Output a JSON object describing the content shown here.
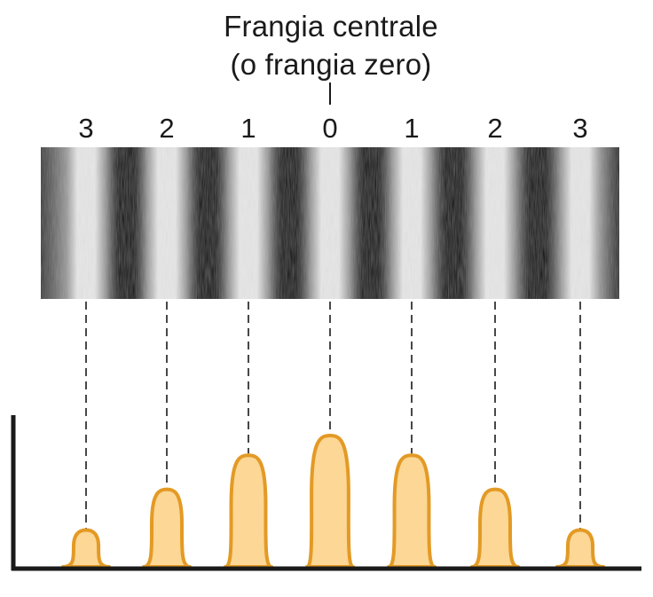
{
  "title": {
    "line1": "Frangia centrale",
    "line2": "(o frangia zero)"
  },
  "fringes": [
    {
      "order": "3",
      "relative_intensity": 0.28
    },
    {
      "order": "2",
      "relative_intensity": 0.59
    },
    {
      "order": "1",
      "relative_intensity": 0.85
    },
    {
      "order": "0",
      "relative_intensity": 1.0
    },
    {
      "order": "1",
      "relative_intensity": 0.85
    },
    {
      "order": "2",
      "relative_intensity": 0.59
    },
    {
      "order": "3",
      "relative_intensity": 0.28
    }
  ],
  "colors": {
    "peak_fill": "#fcd795",
    "peak_stroke": "#e39a25",
    "axis": "#1a1a1a",
    "dash": "#1a1a1a",
    "band_dark": "#0e0e0e",
    "band_light": "#e6e6e6"
  }
}
